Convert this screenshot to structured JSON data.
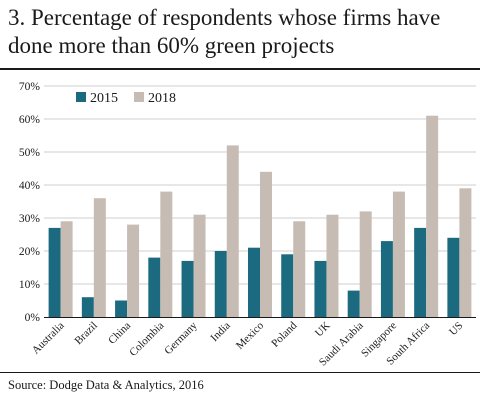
{
  "title": "3. Percentage of respondents whose firms have done more than 60% green projects",
  "source": "Source: Dodge Data & Analytics, 2016",
  "colors": {
    "s2015": "#1c6a80",
    "s2018": "#c6bcb4",
    "grid": "#cfcfcf",
    "text": "#1a1a1a"
  },
  "chart_data": {
    "type": "bar",
    "categories": [
      "Australia",
      "Brazil",
      "China",
      "Colombia",
      "Germany",
      "India",
      "Mexico",
      "Poland",
      "UK",
      "Saudi Arabia",
      "Singapore",
      "South Africa",
      "US"
    ],
    "series": [
      {
        "name": "2015",
        "values": [
          27,
          6,
          5,
          18,
          17,
          20,
          21,
          19,
          17,
          8,
          23,
          27,
          24
        ]
      },
      {
        "name": "2018",
        "values": [
          29,
          36,
          28,
          38,
          31,
          52,
          44,
          29,
          31,
          32,
          38,
          61,
          39
        ]
      }
    ],
    "yticks": [
      "0%",
      "10%",
      "20%",
      "30%",
      "40%",
      "50%",
      "60%",
      "70%"
    ],
    "ylim": [
      0,
      70
    ],
    "grid": true,
    "legend_position": "top-left",
    "xlabel": "",
    "ylabel": ""
  }
}
